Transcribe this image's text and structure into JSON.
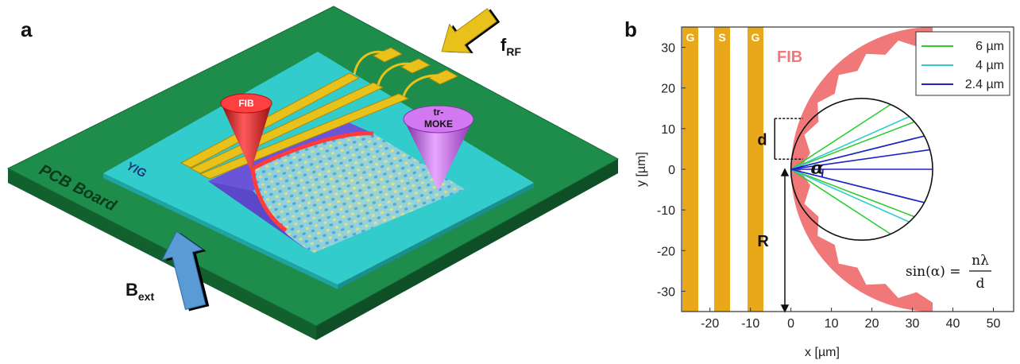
{
  "panel_a": {
    "letter": "a",
    "labels": {
      "pcb": "PCB Board",
      "yig": "YIG",
      "fib": "FIB",
      "trmoke_line1": "tr-",
      "trmoke_line2": "MOKE",
      "b_main": "B",
      "b_sub": "ext",
      "f_main": "f",
      "f_sub": "RF"
    },
    "colors": {
      "pcb": "#1e8c4a",
      "yig": "#33cccc",
      "gold": "#e8c21a",
      "fib_cone": "#d41818",
      "moke_cone": "#b54fd8",
      "b_arrow": "#5b9bd5",
      "f_arrow": "#e8c21a"
    }
  },
  "panel_b": {
    "letter": "b",
    "cpw_labels": [
      "G",
      "S",
      "G"
    ],
    "fib_label": "FIB",
    "d_label": "d",
    "r_label": "R",
    "alpha_label": "α",
    "formula": {
      "lhs": "sin(α) =",
      "numerator": "nλ",
      "denominator": "d"
    },
    "colors": {
      "cpw": "#e8a81a",
      "fib": "#f07878"
    }
  },
  "chart_data": {
    "type": "line",
    "xlabel": "x [µm]",
    "ylabel": "y [µm]",
    "xlim": [
      -27,
      55
    ],
    "ylim": [
      -35,
      35
    ],
    "xticks": [
      -20,
      -10,
      0,
      10,
      20,
      30,
      40,
      50
    ],
    "yticks": [
      -30,
      -20,
      -10,
      0,
      10,
      20,
      30
    ],
    "grid": false,
    "legend_position": "top-right",
    "circle": {
      "center": [
        17.5,
        0
      ],
      "radius": 17.5
    },
    "series": [
      {
        "name": "6 µm",
        "color": "#2ecc2e",
        "angles_deg": [
          -33,
          -21,
          21,
          33
        ]
      },
      {
        "name": "4 µm",
        "color": "#33cccc",
        "angles_deg": [
          -24,
          -14,
          14,
          24
        ]
      },
      {
        "name": "2.4 µm",
        "color": "#2020c8",
        "angles_deg": [
          -14,
          0,
          8,
          14
        ]
      }
    ]
  }
}
